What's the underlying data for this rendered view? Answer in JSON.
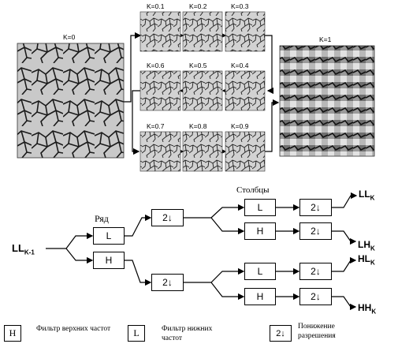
{
  "images": {
    "original_label": "K=0",
    "final_label": "K=1",
    "steps": [
      {
        "label": "K=0.1"
      },
      {
        "label": "K=0.2"
      },
      {
        "label": "K=0.3"
      },
      {
        "label": "K=0.6"
      },
      {
        "label": "K=0.5"
      },
      {
        "label": "K=0.4"
      },
      {
        "label": "K=0.7"
      },
      {
        "label": "K=0.8"
      },
      {
        "label": "K=0.9"
      }
    ]
  },
  "diagram": {
    "input_label": "LL",
    "input_sub": "K-1",
    "row_label": "Ряд",
    "columns_label": "Столбцы",
    "high_filter": "H",
    "low_filter": "L",
    "downsample": "2↓",
    "outputs": [
      {
        "main": "LL",
        "sub": "K"
      },
      {
        "main": "LH",
        "sub": "K"
      },
      {
        "main": "HL",
        "sub": "K"
      },
      {
        "main": "HH",
        "sub": "K"
      }
    ]
  },
  "legend": {
    "high_symbol": "H",
    "high_text": "Фильтр верхних частот",
    "low_symbol": "L",
    "low_text": "Фильтр нижних частот",
    "down_symbol": "2↓",
    "down_text": "Понижение разрешения"
  }
}
